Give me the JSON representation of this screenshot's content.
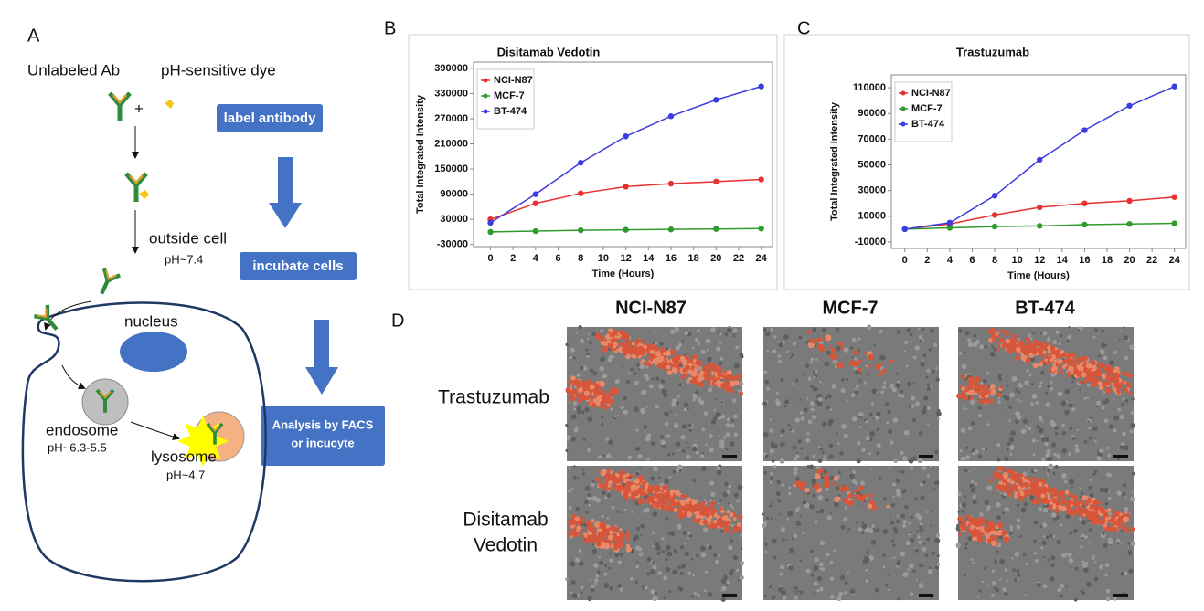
{
  "diagram": {
    "panel": "A",
    "unlabeled": "Unlabeled Ab",
    "dye": "pH-sensitive dye",
    "plus": "+",
    "step1": "label antibody",
    "outside": "outside cell",
    "ph_out": "pH~7.4",
    "step2": "incubate cells",
    "nucleus": "nucleus",
    "endosome": "endosome",
    "ph_endo": "pH~6.3-5.5",
    "lysosome": "lysosome",
    "ph_lyso": "pH~4.7",
    "step3": [
      "Analysis by FACS",
      "or incucyte"
    ]
  },
  "chart_data": [
    {
      "panel": "B",
      "type": "line",
      "title": "Disitamab Vedotin",
      "x_label": "Time (Hours)",
      "y_label": "Total Integrated Intensity",
      "x": [
        0,
        4,
        8,
        12,
        16,
        20,
        24
      ],
      "xlim": [
        -1.5,
        25
      ],
      "xticks": [
        0,
        2,
        4,
        6,
        8,
        10,
        12,
        14,
        16,
        18,
        20,
        22,
        24
      ],
      "ylim": [
        -35000,
        405000
      ],
      "yticks": [
        -30000,
        30000,
        90000,
        150000,
        210000,
        270000,
        330000,
        390000
      ],
      "grid": false,
      "legend": "upper left",
      "series": [
        {
          "name": "NCI-N87",
          "color": "#e8312f",
          "values": [
            30000,
            68000,
            92000,
            108000,
            115000,
            120000,
            125000
          ]
        },
        {
          "name": "MCF-7",
          "color": "#2e9b2e",
          "values": [
            0,
            2000,
            4000,
            5000,
            6000,
            7000,
            8000
          ]
        },
        {
          "name": "BT-474",
          "color": "#3b3be0",
          "values": [
            22000,
            90000,
            165000,
            228000,
            276000,
            315000,
            347000
          ]
        }
      ]
    },
    {
      "panel": "C",
      "type": "line",
      "title": "Trastuzumab",
      "x_label": "Time (Hours)",
      "y_label": "Total Integrated Intensity",
      "x": [
        0,
        4,
        8,
        12,
        16,
        20,
        24
      ],
      "xlim": [
        -1.2,
        25
      ],
      "xticks": [
        0,
        2,
        4,
        6,
        8,
        10,
        12,
        14,
        16,
        18,
        20,
        22,
        24
      ],
      "ylim": [
        -15000,
        120000
      ],
      "yticks": [
        -10000,
        10000,
        30000,
        50000,
        70000,
        90000,
        110000
      ],
      "grid": false,
      "legend": "upper left",
      "series": [
        {
          "name": "NCI-N87",
          "color": "#e8312f",
          "values": [
            0,
            4000,
            11000,
            17000,
            20000,
            22000,
            25000
          ]
        },
        {
          "name": "MCF-7",
          "color": "#2e9b2e",
          "values": [
            0,
            1000,
            2000,
            2500,
            3500,
            4000,
            4500
          ]
        },
        {
          "name": "BT-474",
          "color": "#3b3be0",
          "values": [
            0,
            5000,
            26000,
            54000,
            77000,
            96000,
            111000
          ]
        }
      ]
    }
  ],
  "images": {
    "panel": "D",
    "columns": [
      "NCI-N87",
      "MCF-7",
      "BT-474"
    ],
    "rows": [
      [
        "Trastuzumab"
      ],
      [
        "Disitamab",
        "Vedotin"
      ]
    ]
  }
}
